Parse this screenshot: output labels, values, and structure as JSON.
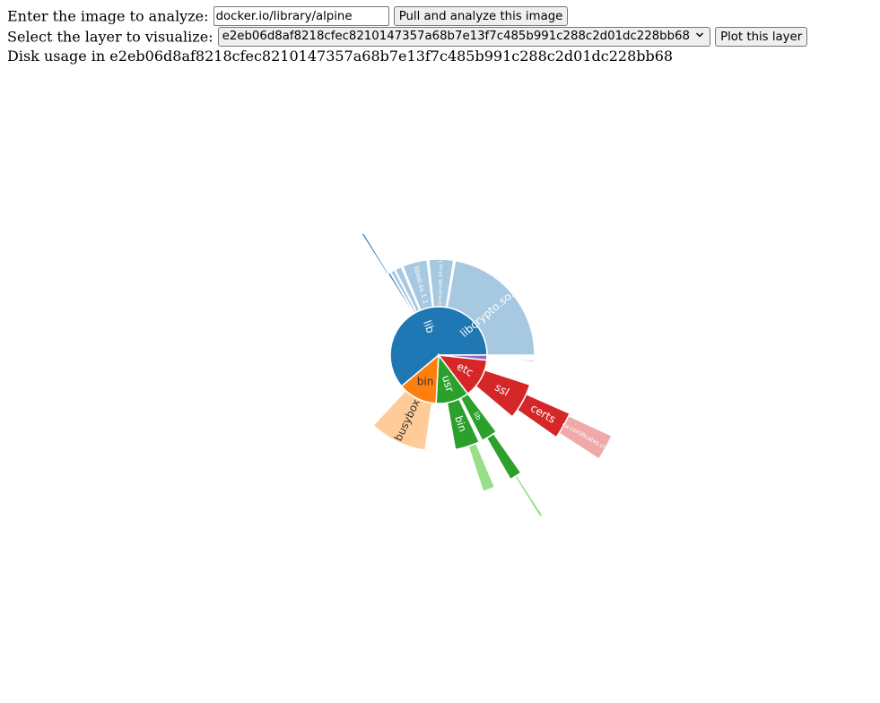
{
  "controls": {
    "image_label": "Enter the image to analyze:",
    "image_value": "docker.io/library/alpine",
    "pull_button": "Pull and analyze this image",
    "layer_label": "Select the layer to visualize:",
    "layer_value": "e2eb06d8af8218cfec8210147357a68b7e13f7c485b991c288c2d01dc228bb68",
    "plot_button": "Plot this layer",
    "disk_usage_text": "Disk usage in e2eb06d8af8218cfec8210147357a68b7e13f7c485b991c288c2d01dc228bb68"
  },
  "chart_data": {
    "type": "sunburst",
    "note_units": "angles in degrees, clockwise from east; radius tier 1 = inner ring",
    "nodes": [
      {
        "name": "lib",
        "label": "lib",
        "tier": 1,
        "start": 140,
        "end": 360,
        "color": "#1f77b4"
      },
      {
        "name": "bin",
        "label": "bin",
        "tier": 1,
        "start": 93,
        "end": 140,
        "color": "#ff7f0e",
        "labelColor": "#333333"
      },
      {
        "name": "usr",
        "label": "usr",
        "tier": 1,
        "start": 53,
        "end": 93,
        "color": "#2ca02c"
      },
      {
        "name": "etc",
        "label": "etc",
        "tier": 1,
        "start": 6,
        "end": 53,
        "color": "#d62728"
      },
      {
        "name": "other-1",
        "label": "",
        "tier": 1,
        "start": 0,
        "end": 6,
        "color": "#9467bd"
      },
      {
        "name": "libcrypto.so.1.1",
        "label": "libcrypto.so.1.1",
        "tier": 2,
        "start": 280,
        "end": 360,
        "color": "#a6c8e0"
      },
      {
        "name": "musl-libc",
        "label": "ld-musl-x86_64.so.1",
        "tier": 2,
        "start": 264,
        "end": 279,
        "color": "#a6c8e0"
      },
      {
        "name": "libssl.so.1.1",
        "label": "libssl.so.1.1",
        "tier": 2,
        "start": 248,
        "end": 263,
        "color": "#a6c8e0"
      },
      {
        "name": "lib-small-1",
        "label": "",
        "tier": 2,
        "start": 243,
        "end": 247,
        "color": "#a6c8e0"
      },
      {
        "name": "lib-small-2",
        "label": "",
        "tier": 2,
        "start": 240,
        "end": 242.5,
        "color": "#a6c8e0"
      },
      {
        "name": "lib-small-3",
        "label": "",
        "tier": 2,
        "start": 238,
        "end": 239.5,
        "color": "#1f77b4"
      },
      {
        "name": "busybox",
        "label": "busybox",
        "tier": 2,
        "start": 98,
        "end": 133,
        "color": "#ffcc99",
        "labelColor": "#333333"
      },
      {
        "name": "usr-bin",
        "label": "bin",
        "tier": 2,
        "start": 65,
        "end": 80,
        "color": "#2ca02c"
      },
      {
        "name": "usr-lib",
        "label": "lib",
        "tier": 2,
        "start": 53,
        "end": 63,
        "color": "#2ca02c"
      },
      {
        "name": "ssl",
        "label": "ssl",
        "tier": 2,
        "start": 18,
        "end": 40,
        "color": "#d62728"
      },
      {
        "name": "etc-small",
        "label": "",
        "tier": 2,
        "start": 3,
        "end": 4,
        "color": "#9467bd"
      },
      {
        "name": "certs",
        "label": "certs",
        "tier": 3,
        "start": 24,
        "end": 35,
        "color": "#d62728"
      },
      {
        "name": "usr-bin-files",
        "label": "",
        "tier": 3,
        "start": 67,
        "end": 72,
        "color": "#98df8a"
      },
      {
        "name": "usr-lib-files",
        "label": "",
        "tier": 3,
        "start": 55,
        "end": 60,
        "color": "#2ca02c"
      },
      {
        "name": "lib-thin",
        "label": "",
        "tier": 3,
        "start": 237.5,
        "end": 238.5,
        "color": "#1f77b4"
      },
      {
        "name": "ca-certificates.crt",
        "label": "ca-certificates.crt",
        "tier": 4,
        "start": 25,
        "end": 33,
        "color": "#f0a9a9"
      },
      {
        "name": "usr-lib-thin",
        "label": "",
        "tier": 4,
        "start": 57,
        "end": 58,
        "color": "#98df8a"
      }
    ]
  }
}
